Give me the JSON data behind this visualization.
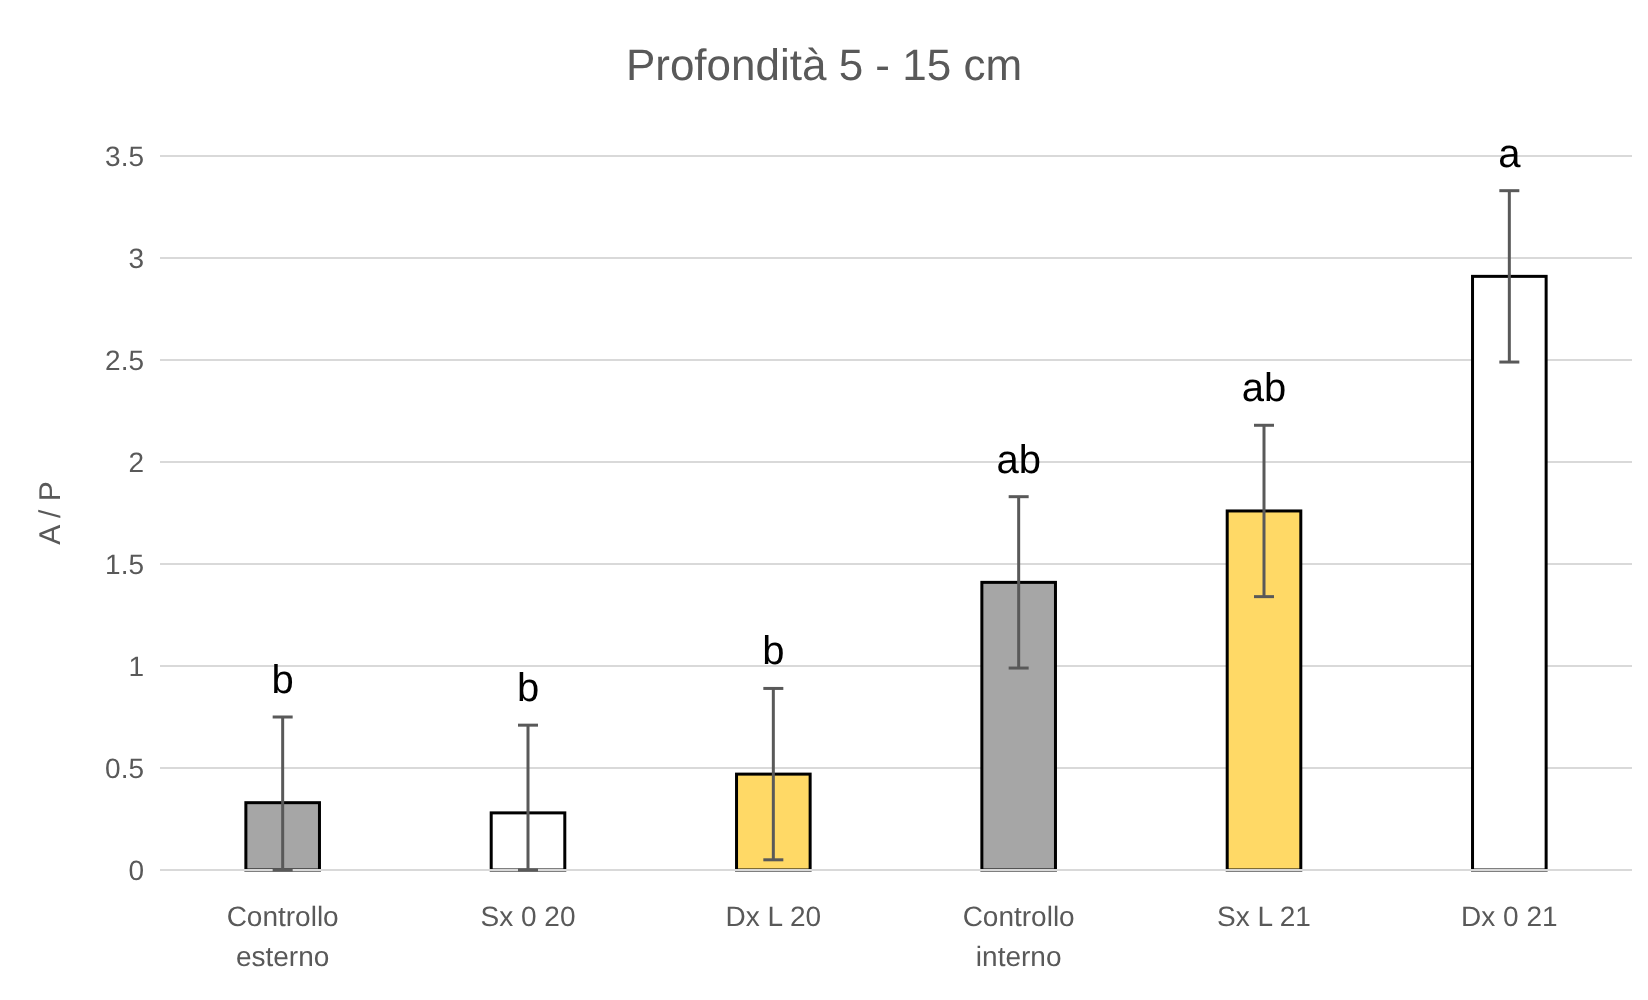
{
  "chart_data": {
    "type": "bar",
    "title": "Profondità 5 - 15 cm",
    "ylabel": "A / P",
    "categories": [
      "Controllo esterno",
      "Sx 0 20",
      "Dx L 20",
      "Controllo interno",
      "Sx L 21",
      "Dx 0 21"
    ],
    "values": [
      0.33,
      0.28,
      0.47,
      1.41,
      1.76,
      2.91
    ],
    "colors": [
      "#a6a6a6",
      "#ffffff",
      "#ffd966",
      "#a6a6a6",
      "#ffd966",
      "#ffffff"
    ],
    "errors": [
      [
        0,
        0.75
      ],
      [
        0,
        0.71
      ],
      0.42,
      0.42,
      0.42,
      0.42
    ],
    "ylim": [
      0,
      3.5
    ],
    "yticks": [
      0,
      0.5,
      1,
      1.5,
      2,
      2.5,
      3,
      3.5
    ],
    "grid": "y",
    "annotations": [
      {
        "text": "b",
        "x": "Controllo esterno",
        "y": 0.75
      },
      {
        "text": "b",
        "x": "Sx 0 20",
        "y": 0.71
      },
      {
        "text": "b",
        "x": "Dx L 20",
        "y": 0.89
      },
      {
        "text": "ab",
        "x": "Controllo interno",
        "y": 1.83
      },
      {
        "text": "ab",
        "x": "Sx L 21",
        "y": 2.18
      },
      {
        "text": "a",
        "x": "Dx 0 21",
        "y": 3.33
      }
    ]
  }
}
